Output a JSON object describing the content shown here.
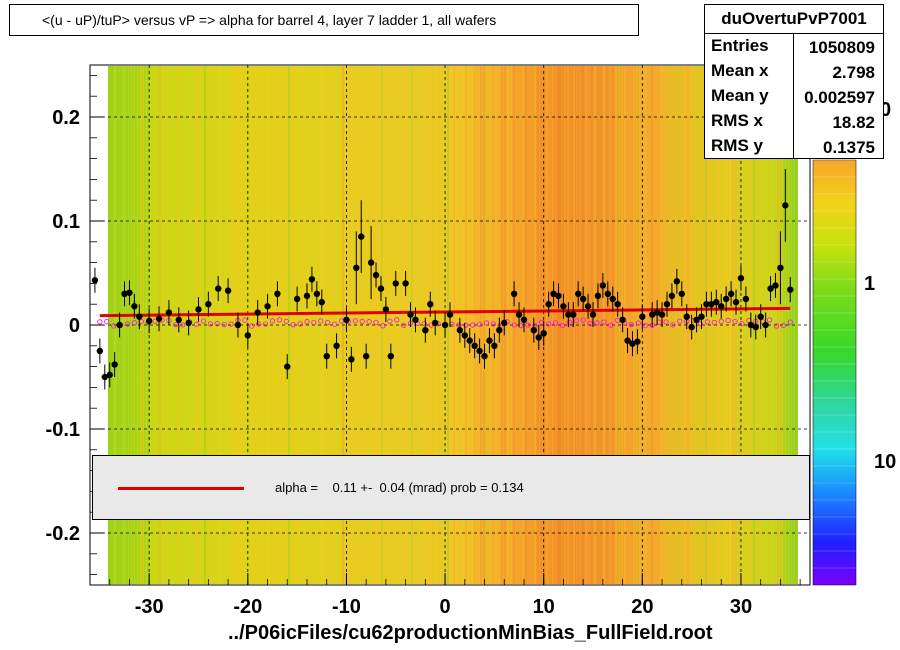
{
  "title": "<(u - uP)/tuP> versus   vP => alpha for barrel 4, layer 7 ladder 1, all wafers",
  "stats": {
    "name": "duOvertuPvP7001",
    "rows": [
      {
        "key": "Entries",
        "value": "1050809"
      },
      {
        "key": "Mean x",
        "value": "2.798"
      },
      {
        "key": "Mean y",
        "value": "0.002597"
      },
      {
        "key": "RMS x",
        "value": "18.82"
      },
      {
        "key": "RMS y",
        "value": "0.1375"
      }
    ]
  },
  "fit_label": "alpha =    0.11 +-  0.04 (mrad) prob = 0.134",
  "file_label": "../P06icFiles/cu62productionMinBias_FullField.root",
  "colors": {
    "fit_line": "#e00000",
    "points": "#000000",
    "open_markers": "#ff00ff",
    "fit_box": "#e9e9e9"
  },
  "chart_data": {
    "type": "scatter",
    "xlim": [
      -36,
      37
    ],
    "ylim": [
      -0.25,
      0.25
    ],
    "x_ticks": [
      -30,
      -20,
      -10,
      0,
      10,
      20,
      30
    ],
    "x_tick_labels": [
      "-30",
      "-20",
      "-10",
      "0",
      "10",
      "20",
      "30"
    ],
    "y_ticks": [
      -0.2,
      -0.1,
      0,
      0.1,
      0.2
    ],
    "y_tick_labels": [
      "-0.2",
      "-0.1",
      "0",
      "0.1",
      "0.2"
    ],
    "grid": true,
    "colorbar_labels": [
      "10",
      "1",
      "0"
    ],
    "fit_line": {
      "x": [
        -35,
        35
      ],
      "y": [
        0.009,
        0.016
      ]
    },
    "profile_points": [
      {
        "x": -35.5,
        "y": 0.043
      },
      {
        "x": -35.0,
        "y": -0.025
      },
      {
        "x": -34.5,
        "y": -0.05
      },
      {
        "x": -34.0,
        "y": -0.048
      },
      {
        "x": -33.5,
        "y": -0.038
      },
      {
        "x": -33.0,
        "y": 0.0
      },
      {
        "x": -32.5,
        "y": 0.03
      },
      {
        "x": -32.0,
        "y": 0.031
      },
      {
        "x": -31.5,
        "y": 0.018
      },
      {
        "x": -31.0,
        "y": 0.008
      },
      {
        "x": -30.0,
        "y": 0.004
      },
      {
        "x": -29.0,
        "y": 0.006
      },
      {
        "x": -28.0,
        "y": 0.012
      },
      {
        "x": -27.0,
        "y": 0.005
      },
      {
        "x": -26.0,
        "y": 0.002
      },
      {
        "x": -25.0,
        "y": 0.015
      },
      {
        "x": -24.0,
        "y": 0.02
      },
      {
        "x": -23.0,
        "y": 0.035
      },
      {
        "x": -22.0,
        "y": 0.033
      },
      {
        "x": -21.0,
        "y": 0.0
      },
      {
        "x": -20.0,
        "y": -0.01
      },
      {
        "x": -19.0,
        "y": 0.012
      },
      {
        "x": -18.0,
        "y": 0.018
      },
      {
        "x": -17.0,
        "y": 0.03
      },
      {
        "x": -16.0,
        "y": -0.04
      },
      {
        "x": -15.0,
        "y": 0.025
      },
      {
        "x": -14.0,
        "y": 0.028
      },
      {
        "x": -13.5,
        "y": 0.044
      },
      {
        "x": -13.0,
        "y": 0.03
      },
      {
        "x": -12.5,
        "y": 0.022
      },
      {
        "x": -12.0,
        "y": -0.03
      },
      {
        "x": -11.0,
        "y": -0.02
      },
      {
        "x": -10.0,
        "y": 0.005
      },
      {
        "x": -9.5,
        "y": -0.033
      },
      {
        "x": -9.0,
        "y": 0.055
      },
      {
        "x": -8.5,
        "y": 0.085
      },
      {
        "x": -8.0,
        "y": -0.03
      },
      {
        "x": -7.5,
        "y": 0.06
      },
      {
        "x": -7.0,
        "y": 0.048
      },
      {
        "x": -6.5,
        "y": 0.035
      },
      {
        "x": -6.0,
        "y": 0.015
      },
      {
        "x": -5.5,
        "y": -0.03
      },
      {
        "x": -5.0,
        "y": 0.04
      },
      {
        "x": -4.0,
        "y": 0.04
      },
      {
        "x": -3.5,
        "y": 0.01
      },
      {
        "x": -3.0,
        "y": 0.005
      },
      {
        "x": -2.0,
        "y": -0.005
      },
      {
        "x": -1.5,
        "y": 0.02
      },
      {
        "x": -1.0,
        "y": 0.002
      },
      {
        "x": 0.0,
        "y": 0.0
      },
      {
        "x": 0.5,
        "y": 0.01
      },
      {
        "x": 1.5,
        "y": -0.005
      },
      {
        "x": 2.0,
        "y": -0.01
      },
      {
        "x": 2.5,
        "y": -0.015
      },
      {
        "x": 3.0,
        "y": -0.02
      },
      {
        "x": 3.5,
        "y": -0.025
      },
      {
        "x": 4.0,
        "y": -0.03
      },
      {
        "x": 4.5,
        "y": -0.015
      },
      {
        "x": 5.0,
        "y": -0.02
      },
      {
        "x": 5.5,
        "y": -0.005
      },
      {
        "x": 6.0,
        "y": 0.002
      },
      {
        "x": 7.0,
        "y": 0.03
      },
      {
        "x": 7.5,
        "y": 0.01
      },
      {
        "x": 8.0,
        "y": 0.005
      },
      {
        "x": 9.0,
        "y": -0.005
      },
      {
        "x": 9.5,
        "y": -0.012
      },
      {
        "x": 10.0,
        "y": -0.008
      },
      {
        "x": 10.5,
        "y": 0.02
      },
      {
        "x": 11.0,
        "y": 0.03
      },
      {
        "x": 11.5,
        "y": 0.028
      },
      {
        "x": 12.0,
        "y": 0.018
      },
      {
        "x": 12.5,
        "y": 0.01
      },
      {
        "x": 13.0,
        "y": 0.01
      },
      {
        "x": 13.5,
        "y": 0.03
      },
      {
        "x": 14.0,
        "y": 0.025
      },
      {
        "x": 14.5,
        "y": 0.018
      },
      {
        "x": 15.0,
        "y": 0.01
      },
      {
        "x": 15.5,
        "y": 0.028
      },
      {
        "x": 16.0,
        "y": 0.038
      },
      {
        "x": 16.5,
        "y": 0.03
      },
      {
        "x": 17.0,
        "y": 0.025
      },
      {
        "x": 17.5,
        "y": 0.02
      },
      {
        "x": 18.0,
        "y": 0.005
      },
      {
        "x": 18.5,
        "y": -0.015
      },
      {
        "x": 19.0,
        "y": -0.018
      },
      {
        "x": 19.5,
        "y": -0.016
      },
      {
        "x": 20.0,
        "y": 0.008
      },
      {
        "x": 21.0,
        "y": 0.01
      },
      {
        "x": 21.5,
        "y": 0.012
      },
      {
        "x": 22.0,
        "y": 0.01
      },
      {
        "x": 22.5,
        "y": 0.02
      },
      {
        "x": 23.0,
        "y": 0.028
      },
      {
        "x": 23.5,
        "y": 0.042
      },
      {
        "x": 24.0,
        "y": 0.03
      },
      {
        "x": 24.5,
        "y": 0.008
      },
      {
        "x": 25.0,
        "y": -0.002
      },
      {
        "x": 25.5,
        "y": 0.005
      },
      {
        "x": 26.0,
        "y": 0.008
      },
      {
        "x": 26.5,
        "y": 0.02
      },
      {
        "x": 27.0,
        "y": 0.02
      },
      {
        "x": 27.5,
        "y": 0.022
      },
      {
        "x": 28.0,
        "y": 0.018
      },
      {
        "x": 28.5,
        "y": 0.025
      },
      {
        "x": 29.0,
        "y": 0.03
      },
      {
        "x": 29.5,
        "y": 0.022
      },
      {
        "x": 30.0,
        "y": 0.045
      },
      {
        "x": 30.5,
        "y": 0.025
      },
      {
        "x": 31.0,
        "y": 0.0
      },
      {
        "x": 31.5,
        "y": -0.002
      },
      {
        "x": 32.0,
        "y": 0.008
      },
      {
        "x": 32.5,
        "y": 0.0
      },
      {
        "x": 33.0,
        "y": 0.035
      },
      {
        "x": 33.5,
        "y": 0.038
      },
      {
        "x": 34.0,
        "y": 0.055
      },
      {
        "x": 34.5,
        "y": 0.115
      },
      {
        "x": 35.0,
        "y": 0.034
      }
    ]
  }
}
